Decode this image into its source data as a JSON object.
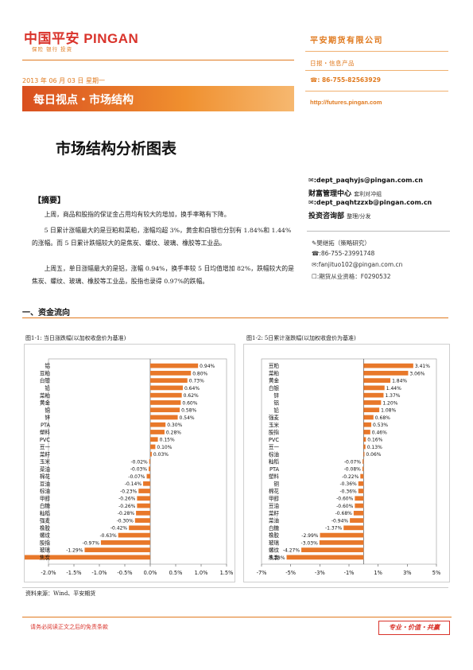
{
  "header": {
    "logo_main": "中国平安 PINGAN",
    "logo_sub": "保险 银行 投资",
    "date_line": "2013 年 06 月 03 日 星期一",
    "banner_title": "每日视点・市场结构",
    "company": "平安期货有限公司",
    "product": "日报・信息产品",
    "phone": "☎: 86-755-82563929",
    "url": "http://futures.pingan.com",
    "brand_color": "#e07a1f"
  },
  "title": "市场结构分析图表",
  "contacts": {
    "email1": "✉:dept_paqhyjs@pingan.com.cn",
    "dept1": "财富管理中心",
    "dept1_note": "套利对冲组",
    "email2": "✉:dept_paqhtzzxb@pingan.com.cn",
    "dept2": "投资咨询部",
    "dept2_note": "整理/分发",
    "analyst": "✎樊继拓（策略研究）",
    "analyst_phone": "☎:86-755-23991748",
    "analyst_email": "✉:fanjituo102@pingan.com.cn",
    "license": "☐:期货从业资格：F0290532"
  },
  "summary": {
    "heading": "【摘要】",
    "p1": "上周，商品和股指的保证金占用均有较大的增加，换手率略有下降。",
    "p2": "5 日累计涨幅最大的是豆粕和菜粕，涨幅均超 3%，黄金和白银也分别有 1.84%和 1.44%的涨幅。而 5 日累计跌幅较大的是焦炭、螺纹、玻璃、橡胶等工业品。",
    "p3": "上周五，单日涨幅最大的是铝，涨幅 0.94%，换手率较 5 日均值增加 82%，跌幅较大的是焦炭、螺纹、玻璃、橡胶等工业品，股指也录得 0.97%的跌幅。"
  },
  "section": {
    "heading": "一、资金流向",
    "fig1_title": "图1-1: 当日涨跌幅(以加权收盘价为基准)",
    "fig2_title": "图1-2: 5日累计涨跌幅(以加权收盘价为基准)",
    "source": "资料来源：Wind、平安期货"
  },
  "footer": {
    "disclaimer": "请务必阅读正文之后的免责条款",
    "slogan": "专业・价值・共赢"
  },
  "chart_data": [
    {
      "type": "bar",
      "orientation": "horizontal",
      "categories": [
        "铝",
        "豆粕",
        "白银",
        "铅",
        "菜粕",
        "黄金",
        "铜",
        "锌",
        "PTA",
        "塑料",
        "PVC",
        "豆一",
        "菜籽",
        "玉米",
        "菜油",
        "棉花",
        "豆油",
        "棕油",
        "甲醇",
        "白糖",
        "籼稻",
        "强麦",
        "橡胶",
        "螺纹",
        "股指",
        "玻璃",
        "焦炭"
      ],
      "values": [
        0.94,
        0.8,
        0.73,
        0.64,
        0.62,
        0.6,
        0.58,
        0.54,
        0.3,
        0.28,
        0.15,
        0.1,
        0.03,
        -0.02,
        -0.03,
        -0.07,
        -0.14,
        -0.23,
        -0.26,
        -0.26,
        -0.28,
        -0.3,
        -0.42,
        -0.63,
        -0.97,
        -1.29,
        -2.59
      ],
      "value_labels": [
        "0.94%",
        "0.80%",
        "0.73%",
        "0.64%",
        "0.62%",
        "0.60%",
        "0.58%",
        "0.54%",
        "0.30%",
        "0.28%",
        "0.15%",
        "0.10%",
        "0.03%",
        "-0.02%",
        "-0.03%",
        "-0.07%",
        "-0.14%",
        "-0.23%",
        "-0.26%",
        "-0.26%",
        "-0.28%",
        "-0.30%",
        "-0.42%",
        "-0.63%",
        "-0.97%",
        "-1.29%",
        "-2.59%"
      ],
      "xlim": [
        -2.0,
        1.5
      ],
      "ticks": [
        -2.0,
        -1.5,
        -1.0,
        -0.5,
        0.0,
        0.5,
        1.0,
        1.5
      ],
      "tick_labels": [
        "-2.0%",
        "-1.5%",
        "-1.0%",
        "-0.5%",
        "0.0%",
        "0.5%",
        "1.0%",
        "1.5%"
      ],
      "grid": false,
      "bar_color": "#e8782a"
    },
    {
      "type": "bar",
      "orientation": "horizontal",
      "categories": [
        "豆粕",
        "菜粕",
        "黄金",
        "白银",
        "锌",
        "铝",
        "铅",
        "强麦",
        "玉米",
        "股指",
        "PVC",
        "豆一",
        "棕油",
        "籼稻",
        "PTA",
        "塑料",
        "铜",
        "棉花",
        "甲醇",
        "豆油",
        "菜籽",
        "菜油",
        "白糖",
        "橡胶",
        "玻璃",
        "螺纹",
        "焦炭"
      ],
      "values": [
        3.41,
        3.06,
        1.84,
        1.44,
        1.37,
        1.2,
        1.08,
        0.68,
        0.53,
        0.46,
        0.16,
        0.13,
        0.06,
        -0.07,
        -0.08,
        -0.22,
        -0.36,
        -0.36,
        -0.6,
        -0.6,
        -0.68,
        -0.94,
        -1.37,
        -2.99,
        -3.03,
        -4.27,
        -5.28
      ],
      "value_labels": [
        "3.41%",
        "3.06%",
        "1.84%",
        "1.44%",
        "1.37%",
        "1.20%",
        "1.08%",
        "0.68%",
        "0.53%",
        "0.46%",
        "0.16%",
        "0.13%",
        "0.06%",
        "-0.07%",
        "-0.08%",
        "-0.22%",
        "-0.36%",
        "-0.36%",
        "-0.60%",
        "-0.60%",
        "-0.68%",
        "-0.94%",
        "-1.37%",
        "-2.99%",
        "-3.03%",
        "-4.27%",
        "-5.28%"
      ],
      "xlim": [
        -7,
        5
      ],
      "ticks": [
        -7,
        -5,
        -3,
        -1,
        1,
        3,
        5
      ],
      "tick_labels": [
        "-7%",
        "-5%",
        "-3%",
        "-1%",
        "1%",
        "3%",
        "5%"
      ],
      "grid": false,
      "bar_color": "#e8782a"
    }
  ]
}
